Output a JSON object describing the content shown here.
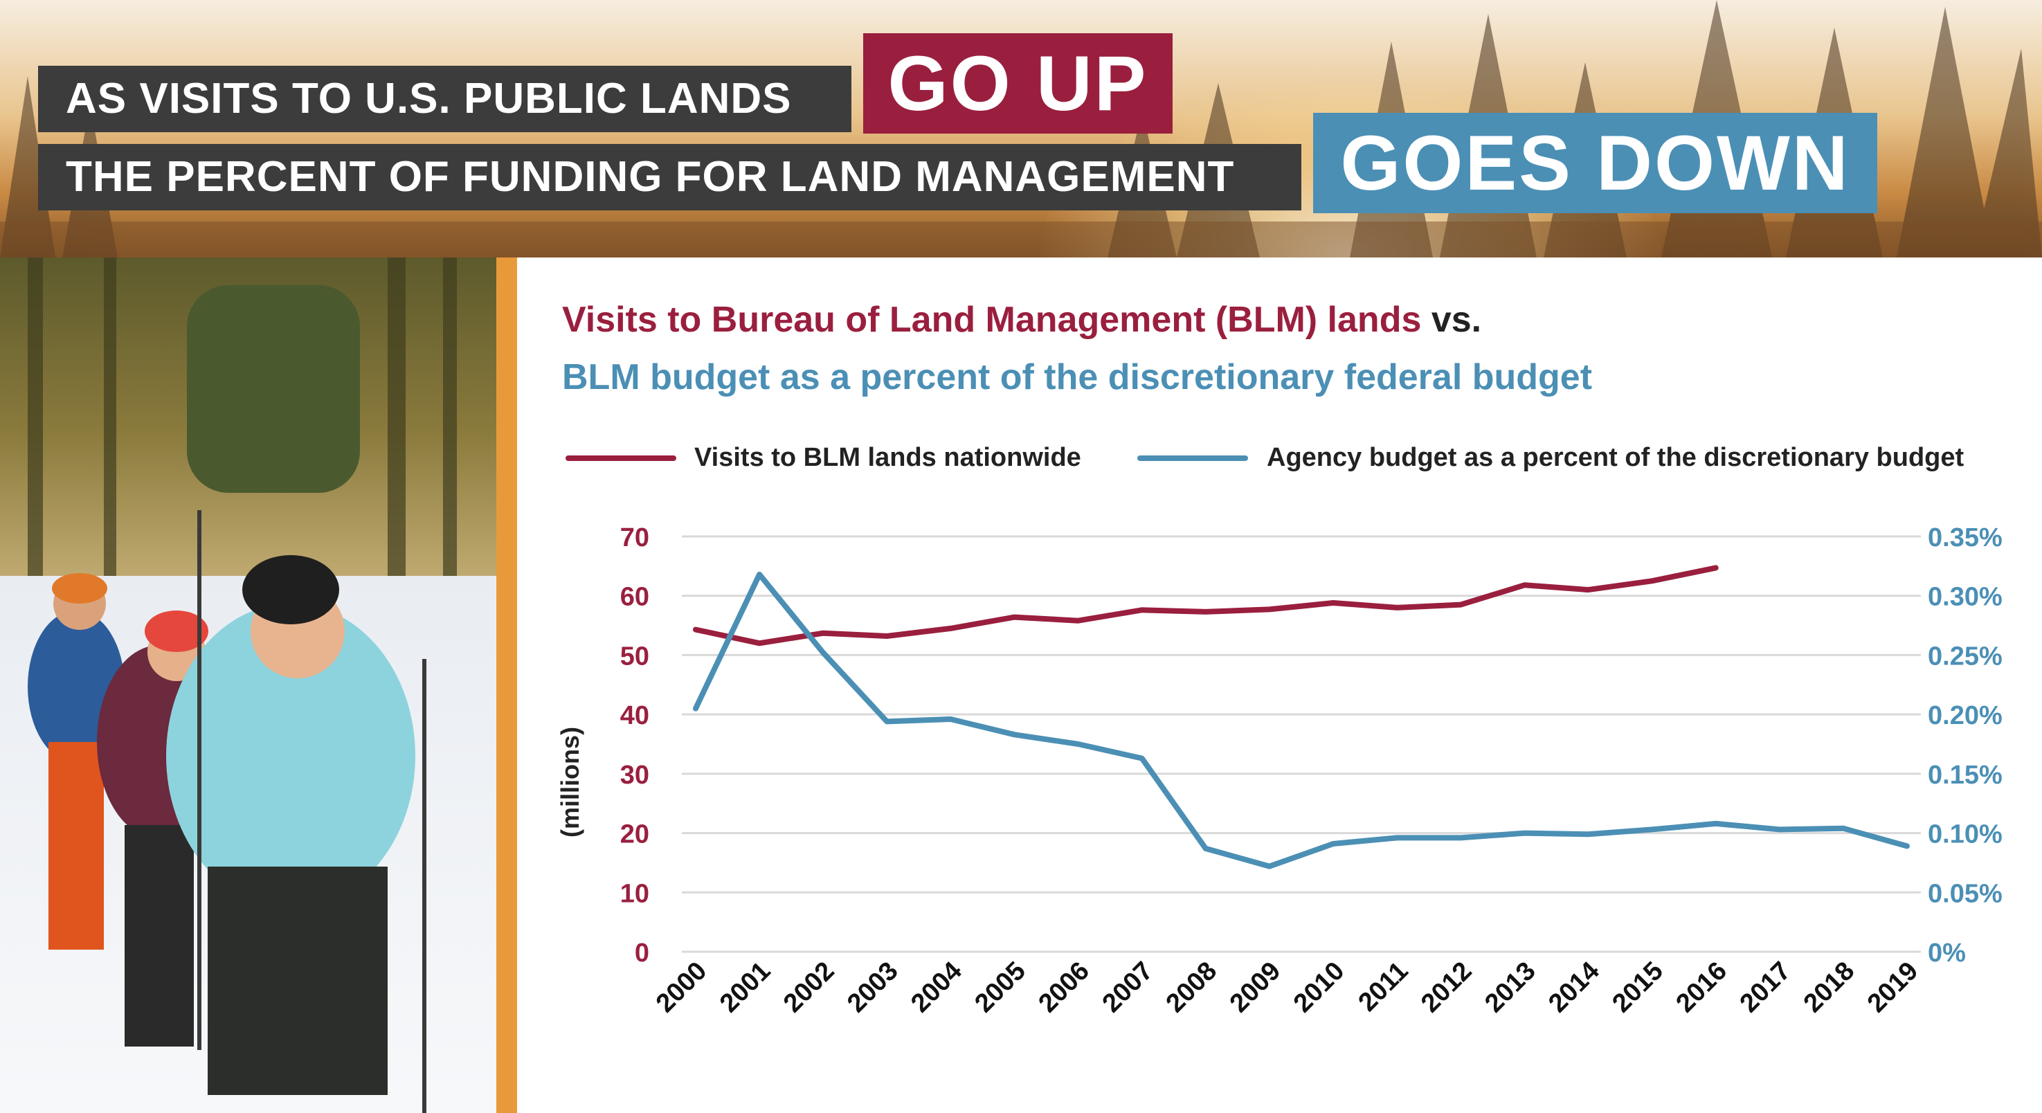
{
  "header": {
    "line1": "AS VISITS TO U.S. PUBLIC LANDS",
    "line2": "THE PERCENT OF FUNDING FOR LAND MANAGEMENT",
    "go_up": "GO UP",
    "goes_down": "GOES DOWN"
  },
  "colors": {
    "visits": "#9a1f3e",
    "budget": "#4b8fb5",
    "accent_bar": "#e89a3b",
    "dark_box": "#3c3c3c"
  },
  "chart_data": {
    "type": "line",
    "title_part1": "Visits to Bureau of Land Management (BLM) lands",
    "title_vs": "vs.",
    "title_part2": "BLM budget as a percent of the discretionary federal budget",
    "ylabel": "(millions)",
    "legend_placement": "top",
    "grid": true,
    "x": [
      "2000",
      "2001",
      "2002",
      "2003",
      "2004",
      "2005",
      "2006",
      "2007",
      "2008",
      "2009",
      "2010",
      "2011",
      "2012",
      "2013",
      "2014",
      "2015",
      "2016",
      "2017",
      "2018",
      "2019"
    ],
    "series": [
      {
        "name": "Visits to BLM lands nationwide",
        "axis": "left",
        "values": [
          54.3,
          52.0,
          53.7,
          53.2,
          54.5,
          56.4,
          55.8,
          57.6,
          57.3,
          57.7,
          58.8,
          58.0,
          58.5,
          61.8,
          61.0,
          62.5,
          64.7,
          null,
          null,
          null
        ]
      },
      {
        "name": "Agency budget as a percent of the discretionary budget",
        "axis": "right",
        "values": [
          0.205,
          0.318,
          0.252,
          0.194,
          0.196,
          0.183,
          0.175,
          0.163,
          0.087,
          0.072,
          0.091,
          0.096,
          0.096,
          0.1,
          0.099,
          0.103,
          0.108,
          0.103,
          0.104,
          0.089
        ]
      }
    ],
    "y_left": {
      "ylim": [
        0,
        70
      ],
      "ticks": [
        "0",
        "10",
        "20",
        "30",
        "40",
        "50",
        "60",
        "70"
      ]
    },
    "y_right": {
      "ylim": [
        0,
        0.35
      ],
      "ticks": [
        "0%",
        "0.05%",
        "0.10%",
        "0.15%",
        "0.20%",
        "0.25%",
        "0.30%",
        "0.35%"
      ]
    }
  }
}
